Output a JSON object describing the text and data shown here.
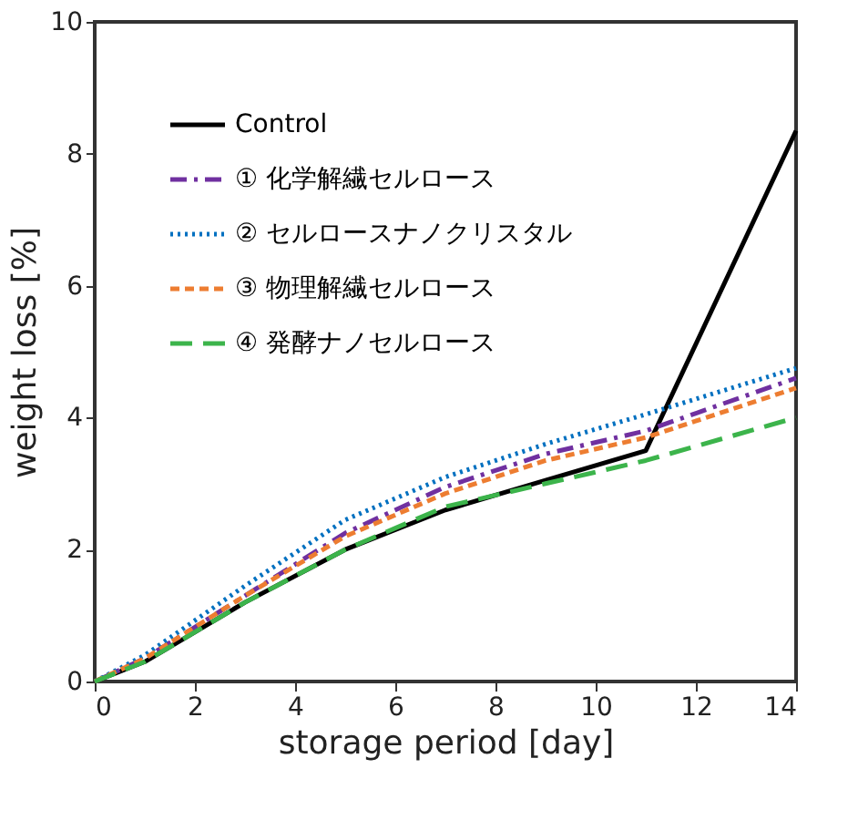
{
  "chart_data": {
    "type": "line",
    "xlabel": "storage period [day]",
    "ylabel": "weight loss [%]",
    "x": [
      0,
      1,
      3,
      5,
      7,
      9,
      11,
      14
    ],
    "xlim": [
      0,
      14
    ],
    "xticks": [
      0,
      2,
      4,
      6,
      8,
      10,
      12,
      14
    ],
    "ylim": [
      0,
      10
    ],
    "yticks": [
      0,
      2,
      4,
      6,
      8,
      10
    ],
    "grid": false,
    "legend": "top left",
    "marker": "none",
    "series": [
      {
        "name": "Control",
        "color": "#000000",
        "line_style": "solid",
        "values": [
          0,
          0.3,
          1.2,
          2.0,
          2.6,
          3.05,
          3.5,
          8.35
        ]
      },
      {
        "name": "① 化学解繊セルロース",
        "color": "#7030a0",
        "line_style": "dashdot",
        "values": [
          0,
          0.35,
          1.3,
          2.25,
          2.95,
          3.45,
          3.8,
          4.6
        ]
      },
      {
        "name": "② セルロースナノクリスタル",
        "color": "#0070c0",
        "line_style": "dotted",
        "values": [
          0,
          0.4,
          1.45,
          2.45,
          3.1,
          3.6,
          4.05,
          4.75
        ]
      },
      {
        "name": "③ 物理解繊セルロース",
        "color": "#ed7d31",
        "line_style": "dashed",
        "values": [
          0,
          0.35,
          1.3,
          2.2,
          2.85,
          3.35,
          3.7,
          4.45
        ]
      },
      {
        "name": "④ 発酵ナノセルロース",
        "color": "#3cb44b",
        "line_style": "longdash",
        "values": [
          0,
          0.3,
          1.2,
          2.0,
          2.65,
          3.0,
          3.35,
          4.0
        ]
      }
    ]
  }
}
